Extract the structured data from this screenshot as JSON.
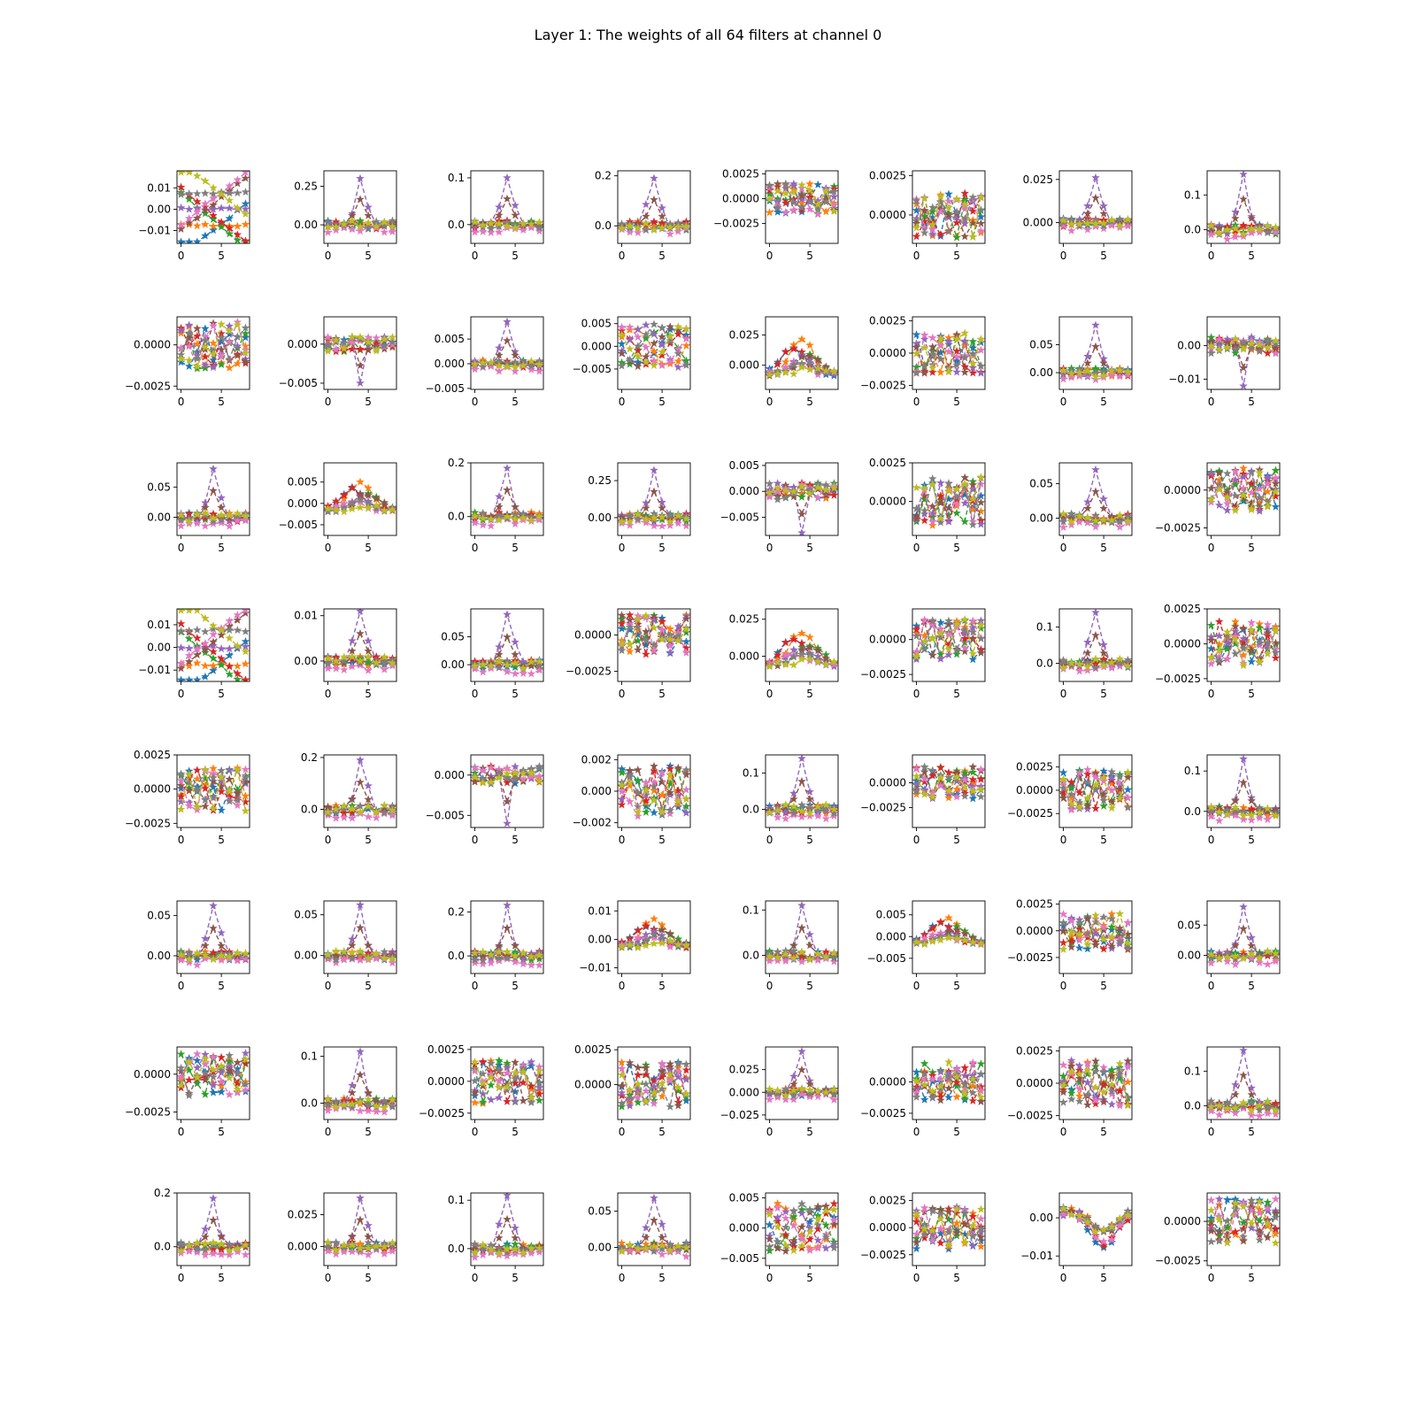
{
  "title": "Layer 1: The weights of all 64 filters at channel 0",
  "colors": [
    "#1f77b4",
    "#ff7f0e",
    "#2ca02c",
    "#d62728",
    "#9467bd",
    "#8c564b",
    "#e377c2",
    "#7f7f7f",
    "#bcbd22"
  ],
  "chart_data": {
    "type": "line",
    "grid": false,
    "layout": "8x8",
    "x": [
      0,
      1,
      2,
      3,
      4,
      5,
      6,
      7,
      8
    ],
    "x_ticks": [
      0,
      5
    ],
    "xlim": [
      -0.5,
      8.5
    ],
    "series_count": 9,
    "marker": "star",
    "line_style": "dashed",
    "subplots": [
      {
        "ylim": [
          -0.016,
          0.018
        ],
        "yticks": [
          "0.01",
          "0.00",
          "−0.01"
        ],
        "ytick_values": [
          0.01,
          0,
          -0.01
        ],
        "style": "smooth",
        "amp": 0.014,
        "spike": 0
      },
      {
        "ylim": [
          -0.12,
          0.35
        ],
        "yticks": [
          "0.25",
          "0.00"
        ],
        "ytick_values": [
          0.25,
          0
        ],
        "style": "spike",
        "amp": 0.3,
        "spike": 1
      },
      {
        "ylim": [
          -0.04,
          0.115
        ],
        "yticks": [
          "0.1",
          "0.0"
        ],
        "ytick_values": [
          0.1,
          0
        ],
        "style": "spike",
        "amp": 0.1,
        "spike": 1
      },
      {
        "ylim": [
          -0.07,
          0.22
        ],
        "yticks": [
          "0.2",
          "0.0"
        ],
        "ytick_values": [
          0.2,
          0
        ],
        "style": "spike",
        "amp": 0.19,
        "spike": 1
      },
      {
        "ylim": [
          -0.0045,
          0.0028
        ],
        "yticks": [
          "0.0025",
          "0.0000",
          "−0.0025"
        ],
        "ytick_values": [
          0.0025,
          0,
          -0.0025
        ],
        "style": "noise",
        "amp": 0.002,
        "spike": 0
      },
      {
        "ylim": [
          -0.0018,
          0.0028
        ],
        "yticks": [
          "0.0025",
          "0.0000"
        ],
        "ytick_values": [
          0.0025,
          0
        ],
        "style": "noise",
        "amp": 0.0018,
        "spike": 0
      },
      {
        "ylim": [
          -0.012,
          0.03
        ],
        "yticks": [
          "0.025",
          "0.000"
        ],
        "ytick_values": [
          0.025,
          0
        ],
        "style": "spike",
        "amp": 0.026,
        "spike": 1
      },
      {
        "ylim": [
          -0.04,
          0.17
        ],
        "yticks": [
          "0.1",
          "0.0"
        ],
        "ytick_values": [
          0.1,
          0
        ],
        "style": "spike",
        "amp": 0.16,
        "spike": 1
      },
      {
        "ylim": [
          -0.0027,
          0.0017
        ],
        "yticks": [
          "0.0000",
          "−0.0025"
        ],
        "ytick_values": [
          0,
          -0.0025
        ],
        "style": "noise",
        "amp": 0.0018,
        "spike": 0
      },
      {
        "ylim": [
          -0.0058,
          0.0035
        ],
        "yticks": [
          "0.000",
          "−0.005"
        ],
        "ytick_values": [
          0,
          -0.005
        ],
        "style": "dip",
        "amp": 0.005,
        "spike": -1
      },
      {
        "ylim": [
          -0.0052,
          0.0095
        ],
        "yticks": [
          "0.005",
          "0.000",
          "−0.005"
        ],
        "ytick_values": [
          0.005,
          0,
          -0.005
        ],
        "style": "spike",
        "amp": 0.0085,
        "spike": 1
      },
      {
        "ylim": [
          -0.0095,
          0.0065
        ],
        "yticks": [
          "0.005",
          "0.000",
          "−0.005"
        ],
        "ytick_values": [
          0.005,
          0,
          -0.005
        ],
        "style": "wave",
        "amp": 0.006,
        "spike": 0
      },
      {
        "ylim": [
          -0.02,
          0.04
        ],
        "yticks": [
          "0.025",
          "0.000"
        ],
        "ytick_values": [
          0.025,
          0
        ],
        "style": "bump",
        "amp": 0.035,
        "spike": 0
      },
      {
        "ylim": [
          -0.0028,
          0.0028
        ],
        "yticks": [
          "0.0025",
          "0.0000",
          "−0.0025"
        ],
        "ytick_values": [
          0.0025,
          0,
          -0.0025
        ],
        "style": "noise",
        "amp": 0.002,
        "spike": 0
      },
      {
        "ylim": [
          -0.03,
          0.1
        ],
        "yticks": [
          "0.05",
          "0.00"
        ],
        "ytick_values": [
          0.05,
          0
        ],
        "style": "spike",
        "amp": 0.085,
        "spike": 1
      },
      {
        "ylim": [
          -0.013,
          0.0085
        ],
        "yticks": [
          "0.00",
          "−0.01"
        ],
        "ytick_values": [
          0,
          -0.01
        ],
        "style": "dip",
        "amp": 0.012,
        "spike": -1
      },
      {
        "ylim": [
          -0.03,
          0.09
        ],
        "yticks": [
          "0.05",
          "0.00"
        ],
        "ytick_values": [
          0.05,
          0
        ],
        "style": "spike",
        "amp": 0.08,
        "spike": 1
      },
      {
        "ylim": [
          -0.0075,
          0.0095
        ],
        "yticks": [
          "0.005",
          "0.000",
          "−0.005"
        ],
        "ytick_values": [
          0.005,
          0,
          -0.005
        ],
        "style": "bump",
        "amp": 0.008,
        "spike": 0
      },
      {
        "ylim": [
          -0.07,
          0.2
        ],
        "yticks": [
          "0.2",
          "0.0"
        ],
        "ytick_values": [
          0.2,
          0
        ],
        "style": "spike",
        "amp": 0.18,
        "spike": 1
      },
      {
        "ylim": [
          -0.12,
          0.37
        ],
        "yticks": [
          "0.25",
          "0.00"
        ],
        "ytick_values": [
          0.25,
          0
        ],
        "style": "spike",
        "amp": 0.32,
        "spike": 1
      },
      {
        "ylim": [
          -0.0085,
          0.0055
        ],
        "yticks": [
          "0.005",
          "0.000",
          "−0.005"
        ],
        "ytick_values": [
          0.005,
          0,
          -0.005
        ],
        "style": "dip",
        "amp": 0.008,
        "spike": -1
      },
      {
        "ylim": [
          -0.0022,
          0.0025
        ],
        "yticks": [
          "0.0025",
          "0.0000"
        ],
        "ytick_values": [
          0.0025,
          0
        ],
        "style": "noise",
        "amp": 0.002,
        "spike": 0
      },
      {
        "ylim": [
          -0.025,
          0.08
        ],
        "yticks": [
          "0.05",
          "0.00"
        ],
        "ytick_values": [
          0.05,
          0
        ],
        "style": "spike",
        "amp": 0.07,
        "spike": 1
      },
      {
        "ylim": [
          -0.003,
          0.0018
        ],
        "yticks": [
          "0.0000",
          "−0.0025"
        ],
        "ytick_values": [
          0,
          -0.0025
        ],
        "style": "noise",
        "amp": 0.0018,
        "spike": 0
      },
      {
        "ylim": [
          -0.015,
          0.017
        ],
        "yticks": [
          "0.01",
          "0.00",
          "−0.01"
        ],
        "ytick_values": [
          0.01,
          0,
          -0.01
        ],
        "style": "smooth",
        "amp": 0.014,
        "spike": 0
      },
      {
        "ylim": [
          -0.0045,
          0.0115
        ],
        "yticks": [
          "0.01",
          "0.00"
        ],
        "ytick_values": [
          0.01,
          0
        ],
        "style": "spike",
        "amp": 0.011,
        "spike": 1
      },
      {
        "ylim": [
          -0.03,
          0.1
        ],
        "yticks": [
          "0.05",
          "0.00"
        ],
        "ytick_values": [
          0.05,
          0
        ],
        "style": "spike",
        "amp": 0.09,
        "spike": 1
      },
      {
        "ylim": [
          -0.0032,
          0.0018
        ],
        "yticks": [
          "0.0000",
          "−0.0025"
        ],
        "ytick_values": [
          0,
          -0.0025
        ],
        "style": "noise",
        "amp": 0.0018,
        "spike": 0
      },
      {
        "ylim": [
          -0.017,
          0.032
        ],
        "yticks": [
          "0.025",
          "0.000"
        ],
        "ytick_values": [
          0.025,
          0
        ],
        "style": "bump",
        "amp": 0.028,
        "spike": 0
      },
      {
        "ylim": [
          -0.003,
          0.0022
        ],
        "yticks": [
          "0.0000",
          "−0.0025"
        ],
        "ytick_values": [
          0,
          -0.0025
        ],
        "style": "noise",
        "amp": 0.0018,
        "spike": 0
      },
      {
        "ylim": [
          -0.05,
          0.15
        ],
        "yticks": [
          "0.1",
          "0.0"
        ],
        "ytick_values": [
          0.1,
          0
        ],
        "style": "spike",
        "amp": 0.14,
        "spike": 1
      },
      {
        "ylim": [
          -0.0027,
          0.0025
        ],
        "yticks": [
          "0.0025",
          "0.0000",
          "−0.0025"
        ],
        "ytick_values": [
          0.0025,
          0,
          -0.0025
        ],
        "style": "noise",
        "amp": 0.002,
        "spike": 0
      },
      {
        "ylim": [
          -0.0028,
          0.0025
        ],
        "yticks": [
          "0.0025",
          "0.0000",
          "−0.0025"
        ],
        "ytick_values": [
          0.0025,
          0,
          -0.0025
        ],
        "style": "noise",
        "amp": 0.002,
        "spike": 0
      },
      {
        "ylim": [
          -0.07,
          0.21
        ],
        "yticks": [
          "0.2",
          "0.0"
        ],
        "ytick_values": [
          0.2,
          0
        ],
        "style": "spike",
        "amp": 0.19,
        "spike": 1
      },
      {
        "ylim": [
          -0.0065,
          0.0025
        ],
        "yticks": [
          "0.000",
          "−0.005"
        ],
        "ytick_values": [
          0,
          -0.005
        ],
        "style": "dip",
        "amp": 0.006,
        "spike": -1
      },
      {
        "ylim": [
          -0.0023,
          0.0023
        ],
        "yticks": [
          "0.002",
          "0.000",
          "−0.002"
        ],
        "ytick_values": [
          0.002,
          0,
          -0.002
        ],
        "style": "noise",
        "amp": 0.002,
        "spike": 0
      },
      {
        "ylim": [
          -0.05,
          0.15
        ],
        "yticks": [
          "0.1",
          "0.0"
        ],
        "ytick_values": [
          0.1,
          0
        ],
        "style": "spike",
        "amp": 0.14,
        "spike": 1
      },
      {
        "ylim": [
          -0.0045,
          0.0028
        ],
        "yticks": [
          "0.0000",
          "−0.0025"
        ],
        "ytick_values": [
          0,
          -0.0025
        ],
        "style": "noise",
        "amp": 0.002,
        "spike": 0
      },
      {
        "ylim": [
          -0.004,
          0.0038
        ],
        "yticks": [
          "0.0025",
          "0.0000",
          "−0.0025"
        ],
        "ytick_values": [
          0.0025,
          0,
          -0.0025
        ],
        "style": "noise",
        "amp": 0.0028,
        "spike": 0
      },
      {
        "ylim": [
          -0.04,
          0.14
        ],
        "yticks": [
          "0.1",
          "0.0"
        ],
        "ytick_values": [
          0.1,
          0
        ],
        "style": "spike",
        "amp": 0.13,
        "spike": 1
      },
      {
        "ylim": [
          -0.022,
          0.068
        ],
        "yticks": [
          "0.05",
          "0.00"
        ],
        "ytick_values": [
          0.05,
          0
        ],
        "style": "spike",
        "amp": 0.062,
        "spike": 1
      },
      {
        "ylim": [
          -0.022,
          0.067
        ],
        "yticks": [
          "0.05",
          "0.00"
        ],
        "ytick_values": [
          0.05,
          0
        ],
        "style": "spike",
        "amp": 0.062,
        "spike": 1
      },
      {
        "ylim": [
          -0.08,
          0.25
        ],
        "yticks": [
          "0.2",
          "0.0"
        ],
        "ytick_values": [
          0.2,
          0
        ],
        "style": "spike",
        "amp": 0.23,
        "spike": 1
      },
      {
        "ylim": [
          -0.012,
          0.0135
        ],
        "yticks": [
          "0.01",
          "0.00",
          "−0.01"
        ],
        "ytick_values": [
          0.01,
          0,
          -0.01
        ],
        "style": "bump",
        "amp": 0.012,
        "spike": 0
      },
      {
        "ylim": [
          -0.04,
          0.12
        ],
        "yticks": [
          "0.1",
          "0.0"
        ],
        "ytick_values": [
          0.1,
          0
        ],
        "style": "spike",
        "amp": 0.11,
        "spike": 1
      },
      {
        "ylim": [
          -0.0085,
          0.0082
        ],
        "yticks": [
          "0.005",
          "0.000",
          "−0.005"
        ],
        "ytick_values": [
          0.005,
          0,
          -0.005
        ],
        "style": "bump",
        "amp": 0.007,
        "spike": 0
      },
      {
        "ylim": [
          -0.004,
          0.0028
        ],
        "yticks": [
          "0.0025",
          "0.0000",
          "−0.0025"
        ],
        "ytick_values": [
          0.0025,
          0,
          -0.0025
        ],
        "style": "noise",
        "amp": 0.0022,
        "spike": 0
      },
      {
        "ylim": [
          -0.03,
          0.09
        ],
        "yticks": [
          "0.05",
          "0.00"
        ],
        "ytick_values": [
          0.05,
          0
        ],
        "style": "spike",
        "amp": 0.08,
        "spike": 1
      },
      {
        "ylim": [
          -0.003,
          0.0018
        ],
        "yticks": [
          "0.0000",
          "−0.0025"
        ],
        "ytick_values": [
          0,
          -0.0025
        ],
        "style": "noise",
        "amp": 0.0018,
        "spike": 0
      },
      {
        "ylim": [
          -0.035,
          0.12
        ],
        "yticks": [
          "0.1",
          "0.0"
        ],
        "ytick_values": [
          0.1,
          0
        ],
        "style": "spike",
        "amp": 0.11,
        "spike": 1
      },
      {
        "ylim": [
          -0.003,
          0.0027
        ],
        "yticks": [
          "0.0025",
          "0.0000",
          "−0.0025"
        ],
        "ytick_values": [
          0.0025,
          0,
          -0.0025
        ],
        "style": "noise",
        "amp": 0.0022,
        "spike": 0
      },
      {
        "ylim": [
          -0.0025,
          0.0027
        ],
        "yticks": [
          "0.0025",
          "0.0000"
        ],
        "ytick_values": [
          0.0025,
          0
        ],
        "style": "noise",
        "amp": 0.002,
        "spike": 0
      },
      {
        "ylim": [
          -0.03,
          0.05
        ],
        "yticks": [
          "0.025",
          "0.000",
          "−0.025"
        ],
        "ytick_values": [
          0.025,
          0,
          -0.025
        ],
        "style": "spike",
        "amp": 0.045,
        "spike": 1
      },
      {
        "ylim": [
          -0.003,
          0.0028
        ],
        "yticks": [
          "0.0000",
          "−0.0025"
        ],
        "ytick_values": [
          0,
          -0.0025
        ],
        "style": "noise",
        "amp": 0.002,
        "spike": 0
      },
      {
        "ylim": [
          -0.0028,
          0.0028
        ],
        "yticks": [
          "0.0025",
          "0.0000",
          "−0.0025"
        ],
        "ytick_values": [
          0.0025,
          0,
          -0.0025
        ],
        "style": "noise",
        "amp": 0.0022,
        "spike": 0
      },
      {
        "ylim": [
          -0.04,
          0.17
        ],
        "yticks": [
          "0.1",
          "0.0"
        ],
        "ytick_values": [
          0.1,
          0
        ],
        "style": "spike",
        "amp": 0.16,
        "spike": 1
      },
      {
        "ylim": [
          -0.07,
          0.2
        ],
        "yticks": [
          "0.2",
          "0.0"
        ],
        "ytick_values": [
          0.2,
          0
        ],
        "style": "spike",
        "amp": 0.18,
        "spike": 1
      },
      {
        "ylim": [
          -0.015,
          0.042
        ],
        "yticks": [
          "0.025",
          "0.000"
        ],
        "ytick_values": [
          0.025,
          0
        ],
        "style": "spike",
        "amp": 0.038,
        "spike": 1
      },
      {
        "ylim": [
          -0.035,
          0.115
        ],
        "yticks": [
          "0.1",
          "0.0"
        ],
        "ytick_values": [
          0.1,
          0
        ],
        "style": "spike",
        "amp": 0.11,
        "spike": 1
      },
      {
        "ylim": [
          -0.025,
          0.075
        ],
        "yticks": [
          "0.05",
          "0.00"
        ],
        "ytick_values": [
          0.05,
          0
        ],
        "style": "spike",
        "amp": 0.068,
        "spike": 1
      },
      {
        "ylim": [
          -0.0062,
          0.0058
        ],
        "yticks": [
          "0.005",
          "0.000",
          "−0.005"
        ],
        "ytick_values": [
          0.005,
          0,
          -0.005
        ],
        "style": "wave",
        "amp": 0.005,
        "spike": 0
      },
      {
        "ylim": [
          -0.0035,
          0.0032
        ],
        "yticks": [
          "0.0025",
          "0.0000",
          "−0.0025"
        ],
        "ytick_values": [
          0.0025,
          0,
          -0.0025
        ],
        "style": "noise",
        "amp": 0.0025,
        "spike": 0
      },
      {
        "ylim": [
          -0.0125,
          0.0065
        ],
        "yticks": [
          "0.00",
          "−0.01"
        ],
        "ytick_values": [
          0,
          -0.01
        ],
        "style": "dipwide",
        "amp": 0.011,
        "spike": 0
      },
      {
        "ylim": [
          -0.0028,
          0.0018
        ],
        "yticks": [
          "0.0000",
          "−0.0025"
        ],
        "ytick_values": [
          0,
          -0.0025
        ],
        "style": "noise",
        "amp": 0.0018,
        "spike": 0
      }
    ]
  }
}
